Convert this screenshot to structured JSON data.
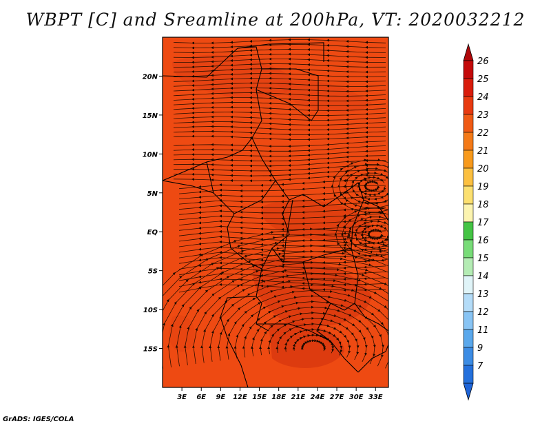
{
  "title": "WBPT [C] and Sreamline at 200hPa, VT: 2020032212",
  "footer": "GrADS: IGES/COLA",
  "map": {
    "lon_range": [
      0,
      35
    ],
    "lat_range": [
      -20,
      25
    ],
    "fill_color": "#ee4a12",
    "lat_ticks": [
      {
        "value": 20,
        "label": "20N"
      },
      {
        "value": 15,
        "label": "15N"
      },
      {
        "value": 10,
        "label": "10N"
      },
      {
        "value": 5,
        "label": "5N"
      },
      {
        "value": 0,
        "label": "EQ"
      },
      {
        "value": -5,
        "label": "5S"
      },
      {
        "value": -10,
        "label": "10S"
      },
      {
        "value": -15,
        "label": "15S"
      }
    ],
    "lon_ticks": [
      {
        "value": 3,
        "label": "3E"
      },
      {
        "value": 6,
        "label": "6E"
      },
      {
        "value": 9,
        "label": "9E"
      },
      {
        "value": 12,
        "label": "12E"
      },
      {
        "value": 15,
        "label": "15E"
      },
      {
        "value": 18,
        "label": "18E"
      },
      {
        "value": 21,
        "label": "21E"
      },
      {
        "value": 24,
        "label": "24E"
      },
      {
        "value": 27,
        "label": "27E"
      },
      {
        "value": 30,
        "label": "30E"
      },
      {
        "value": 33,
        "label": "33E"
      }
    ]
  },
  "colorbar": {
    "labels": [
      "26",
      "25",
      "24",
      "23",
      "22",
      "21",
      "20",
      "19",
      "18",
      "17",
      "16",
      "15",
      "14",
      "13",
      "12",
      "11",
      "9",
      "7"
    ],
    "colors": [
      "#c40a0a",
      "#d91c0c",
      "#e83a10",
      "#f05a14",
      "#f47a18",
      "#f89a1c",
      "#fcc040",
      "#fce070",
      "#fcf4b0",
      "#44c444",
      "#78dc78",
      "#b4ecb4",
      "#e0f4f8",
      "#b4dcf8",
      "#88c4f4",
      "#5aa8ec",
      "#3c8ce4",
      "#2470dc"
    ],
    "top_arrow_color": "#b0080a",
    "bottom_arrow_color": "#1e64d8"
  }
}
